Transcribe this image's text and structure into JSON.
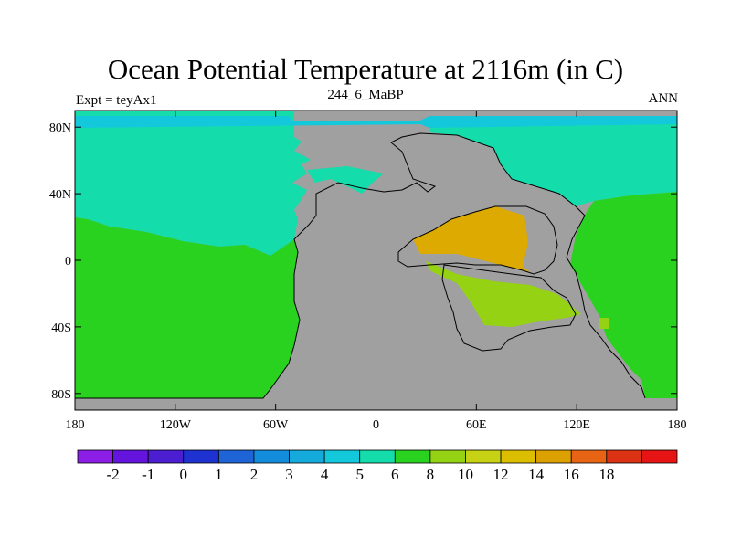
{
  "title": "Ocean Potential Temperature at 2116m (in C)",
  "subtitle_left": "Expt = teyAx1",
  "subtitle_center": "244_6_MaBP",
  "subtitle_right": "ANN",
  "map": {
    "lon_range": [
      -180,
      180
    ],
    "lat_range": [
      -90,
      90
    ],
    "x_ticks": [
      {
        "lon": -180,
        "label": "180"
      },
      {
        "lon": -120,
        "label": "120W"
      },
      {
        "lon": -60,
        "label": "60W"
      },
      {
        "lon": 0,
        "label": "0"
      },
      {
        "lon": 60,
        "label": "60E"
      },
      {
        "lon": 120,
        "label": "120E"
      },
      {
        "lon": 180,
        "label": "180"
      }
    ],
    "y_ticks": [
      {
        "lat": 80,
        "label": "80N"
      },
      {
        "lat": 40,
        "label": "40N"
      },
      {
        "lat": 0,
        "label": "0"
      },
      {
        "lat": -40,
        "label": "40S"
      },
      {
        "lat": -80,
        "label": "80S"
      }
    ],
    "land_color": "#a0a0a0"
  },
  "colorbar": {
    "colors": [
      "#8c1ee6",
      "#6414dc",
      "#4b1ed2",
      "#1e32d2",
      "#1e64d7",
      "#148cdc",
      "#14aadc",
      "#14c8dc",
      "#14dcaa",
      "#28d21e",
      "#96d214",
      "#c8d214",
      "#dcbe00",
      "#dca000",
      "#e66414",
      "#dc3214",
      "#e61414"
    ],
    "labels": [
      "-2",
      "-1",
      "0",
      "1",
      "2",
      "3",
      "4",
      "5",
      "6",
      "8",
      "10",
      "12",
      "14",
      "16",
      "18"
    ]
  }
}
